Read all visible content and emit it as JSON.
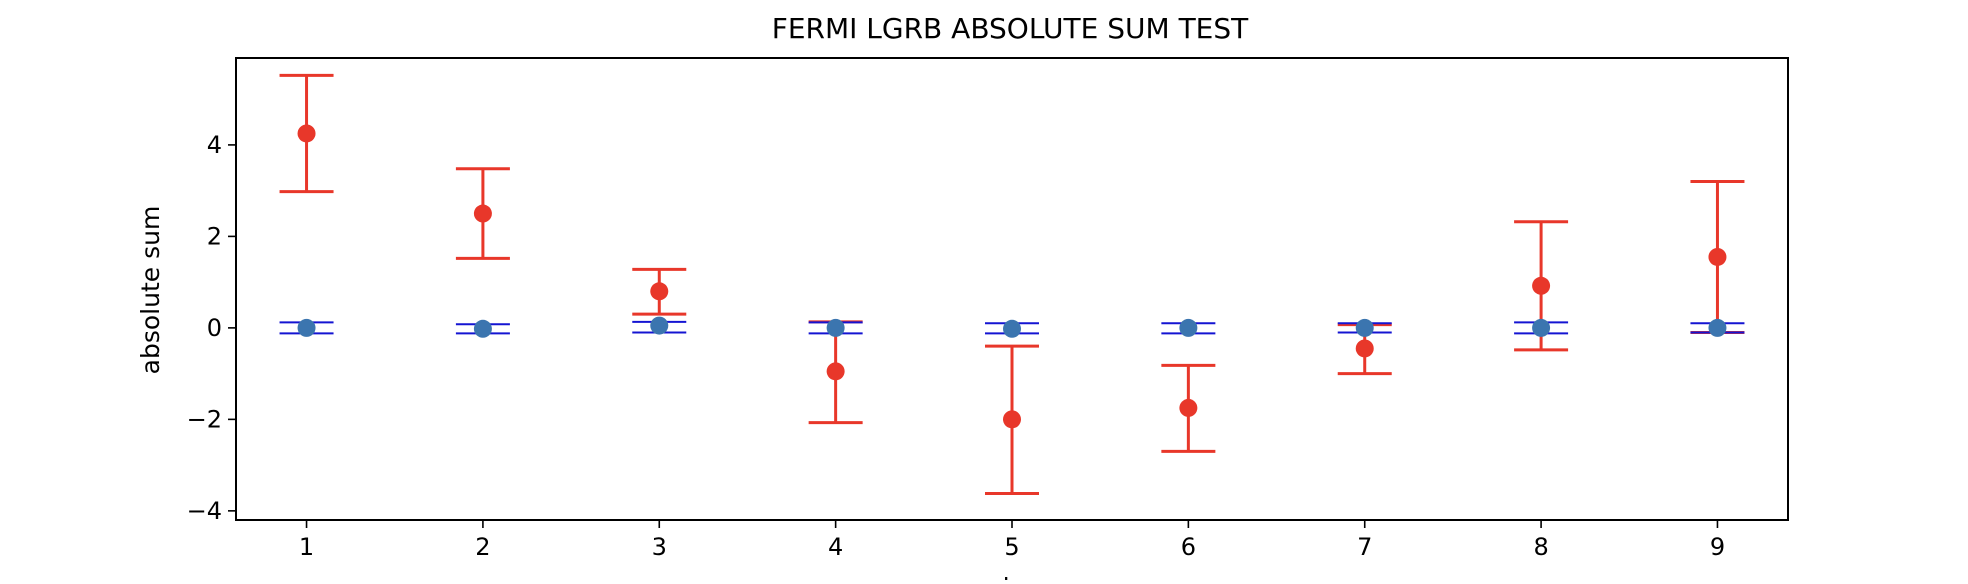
{
  "chart_data": {
    "type": "scatter",
    "title": "FERMI LGRB ABSOLUTE SUM TEST",
    "xlabel": "k",
    "ylabel": "absolute sum",
    "xlim": [
      0.6,
      9.4
    ],
    "ylim": [
      -4.2,
      5.9
    ],
    "xticks": [
      1,
      2,
      3,
      4,
      5,
      6,
      7,
      8,
      9
    ],
    "yticks": [
      -4,
      -2,
      0,
      2,
      4
    ],
    "grid": false,
    "legend": "none",
    "x": [
      1,
      2,
      3,
      4,
      5,
      6,
      7,
      8,
      9
    ],
    "series": [
      {
        "color": "#e8372a",
        "errorbar_color": "#e8372a",
        "y": [
          4.25,
          2.5,
          0.8,
          -0.95,
          -2.0,
          -1.75,
          -0.45,
          0.92,
          1.55
        ],
        "yerr_low": [
          2.98,
          1.52,
          0.3,
          -2.07,
          -3.62,
          -2.7,
          -1.0,
          -0.48,
          -0.1
        ],
        "yerr_high": [
          5.52,
          3.48,
          1.28,
          0.13,
          -0.4,
          -0.82,
          0.07,
          2.32,
          3.2
        ]
      },
      {
        "color": "#3b75af",
        "errorbar_color": "#1414d2",
        "y": [
          0.0,
          -0.02,
          0.05,
          0.0,
          -0.02,
          0.0,
          0.0,
          0.0,
          0.0
        ],
        "yerr_low": [
          -0.12,
          -0.12,
          -0.1,
          -0.12,
          -0.12,
          -0.12,
          -0.1,
          -0.12,
          -0.1
        ],
        "yerr_high": [
          0.12,
          0.08,
          0.13,
          0.12,
          0.1,
          0.1,
          0.1,
          0.12,
          0.1
        ]
      }
    ]
  }
}
